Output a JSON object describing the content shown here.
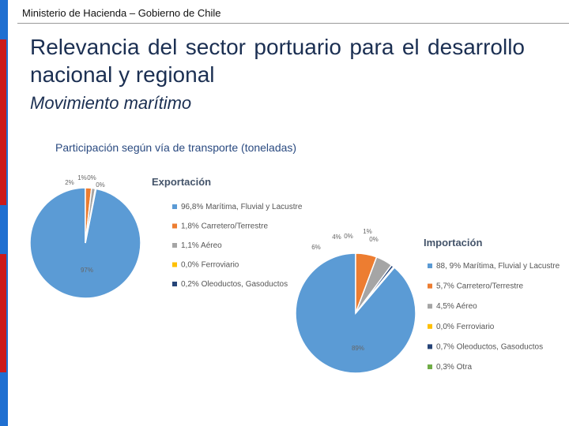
{
  "header": {
    "text": "Ministerio de Hacienda – Gobierno de Chile"
  },
  "slide": {
    "title": "Relevancia del sector portuario para el desarrollo nacional y regional",
    "subtitle": "Movimiento marítimo",
    "chart_title": "Participación según vía de transporte (toneladas)"
  },
  "colors": {
    "blue": "#5b9bd5",
    "orange": "#ed7d31",
    "gray": "#a5a5a5",
    "yellow": "#ffc000",
    "darkblue": "#264478",
    "green": "#70ad47",
    "text": "#1b2f52",
    "accent": "#1f6fd1",
    "red": "#cc1a1a"
  },
  "chart_data": [
    {
      "type": "pie",
      "title": "Exportación",
      "slices": [
        {
          "legend": "96,8% Marítima, Fluvial y Lacustre",
          "label": "97%",
          "value": 96.8,
          "color": "#5b9bd5"
        },
        {
          "legend": "1,8% Carretero/Terrestre",
          "label": "2%",
          "value": 1.8,
          "color": "#ed7d31"
        },
        {
          "legend": "1,1% Aéreo",
          "label": "1%",
          "value": 1.1,
          "color": "#a5a5a5"
        },
        {
          "legend": "0,0% Ferroviario",
          "label": "0%",
          "value": 0.0,
          "color": "#ffc000"
        },
        {
          "legend": "0,2% Oleoductos, Gasoductos",
          "label": "0%",
          "value": 0.2,
          "color": "#264478"
        }
      ]
    },
    {
      "type": "pie",
      "title": "Importación",
      "slices": [
        {
          "legend": "88, 9% Marítima, Fluvial y Lacustre",
          "label": "89%",
          "value": 88.9,
          "color": "#5b9bd5"
        },
        {
          "legend": "5,7% Carretero/Terrestre",
          "label": "6%",
          "value": 5.7,
          "color": "#ed7d31"
        },
        {
          "legend": "4,5% Aéreo",
          "label": "4%",
          "value": 4.5,
          "color": "#a5a5a5"
        },
        {
          "legend": "0,0% Ferroviario",
          "label": "0%",
          "value": 0.0,
          "color": "#ffc000"
        },
        {
          "legend": "0,7% Oleoductos, Gasoductos",
          "label": "1%",
          "value": 0.7,
          "color": "#264478"
        },
        {
          "legend": "0,3% Otra",
          "label": "0%",
          "value": 0.3,
          "color": "#70ad47"
        }
      ]
    }
  ]
}
